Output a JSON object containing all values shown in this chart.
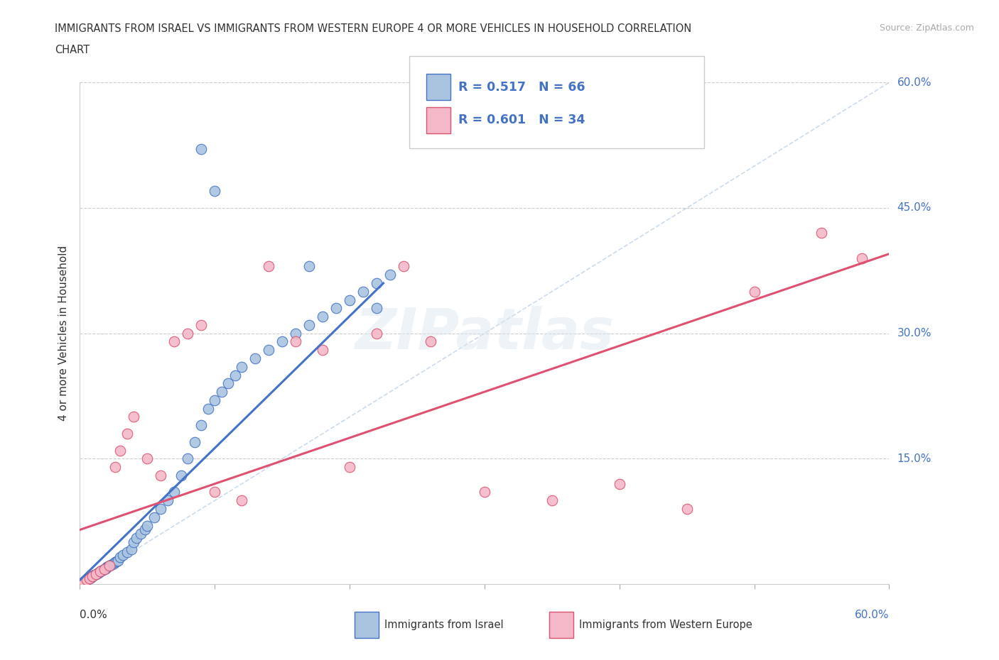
{
  "title_line1": "IMMIGRANTS FROM ISRAEL VS IMMIGRANTS FROM WESTERN EUROPE 4 OR MORE VEHICLES IN HOUSEHOLD CORRELATION",
  "title_line2": "CHART",
  "source": "Source: ZipAtlas.com",
  "ylabel": "4 or more Vehicles in Household",
  "xlim": [
    0.0,
    0.6
  ],
  "ylim": [
    0.0,
    0.6
  ],
  "ytick_values": [
    0.0,
    0.15,
    0.3,
    0.45,
    0.6
  ],
  "ytick_labels": [
    "0.0%",
    "15.0%",
    "30.0%",
    "45.0%",
    "60.0%"
  ],
  "xtick_values": [
    0.0,
    0.1,
    0.2,
    0.3,
    0.4,
    0.5,
    0.6
  ],
  "israel_fill": "#aac4e0",
  "israel_edge": "#4472c4",
  "we_fill": "#f4b8c8",
  "we_edge": "#d9546e",
  "trend_israel_color": "#4472c4",
  "trend_we_color": "#e05070",
  "diag_color": "#aac4e0",
  "legend_israel_R": "0.517",
  "legend_israel_N": "66",
  "legend_we_R": "0.601",
  "legend_we_N": "34",
  "watermark": "ZIPatlas",
  "bg_color": "#ffffff",
  "grid_color": "#cccccc",
  "value_color": "#4472c4",
  "text_color": "#333333",
  "source_color": "#aaaaaa",
  "israel_x": [
    0.001,
    0.002,
    0.003,
    0.004,
    0.005,
    0.006,
    0.007,
    0.008,
    0.009,
    0.01,
    0.011,
    0.012,
    0.013,
    0.014,
    0.015,
    0.016,
    0.017,
    0.018,
    0.019,
    0.02,
    0.021,
    0.022,
    0.023,
    0.024,
    0.025,
    0.026,
    0.027,
    0.028,
    0.03,
    0.032,
    0.035,
    0.038,
    0.04,
    0.042,
    0.045,
    0.048,
    0.05,
    0.055,
    0.06,
    0.065,
    0.07,
    0.075,
    0.08,
    0.085,
    0.09,
    0.095,
    0.1,
    0.105,
    0.11,
    0.115,
    0.12,
    0.13,
    0.14,
    0.15,
    0.16,
    0.17,
    0.18,
    0.19,
    0.2,
    0.21,
    0.22,
    0.23,
    0.22,
    0.17,
    0.09,
    0.1
  ],
  "israel_y": [
    0.001,
    0.002,
    0.003,
    0.004,
    0.005,
    0.006,
    0.007,
    0.008,
    0.009,
    0.01,
    0.011,
    0.012,
    0.013,
    0.014,
    0.015,
    0.016,
    0.017,
    0.018,
    0.019,
    0.02,
    0.021,
    0.022,
    0.023,
    0.024,
    0.025,
    0.026,
    0.027,
    0.028,
    0.032,
    0.035,
    0.038,
    0.042,
    0.05,
    0.055,
    0.06,
    0.065,
    0.07,
    0.08,
    0.09,
    0.1,
    0.11,
    0.13,
    0.15,
    0.17,
    0.19,
    0.21,
    0.22,
    0.23,
    0.24,
    0.25,
    0.26,
    0.27,
    0.28,
    0.29,
    0.3,
    0.31,
    0.32,
    0.33,
    0.34,
    0.35,
    0.36,
    0.37,
    0.33,
    0.38,
    0.52,
    0.47
  ],
  "we_x": [
    0.001,
    0.003,
    0.005,
    0.007,
    0.009,
    0.012,
    0.015,
    0.018,
    0.022,
    0.026,
    0.03,
    0.035,
    0.04,
    0.05,
    0.06,
    0.07,
    0.08,
    0.09,
    0.1,
    0.12,
    0.14,
    0.16,
    0.18,
    0.2,
    0.22,
    0.24,
    0.26,
    0.3,
    0.35,
    0.4,
    0.45,
    0.5,
    0.55,
    0.58
  ],
  "we_y": [
    0.001,
    0.003,
    0.005,
    0.007,
    0.009,
    0.012,
    0.015,
    0.018,
    0.022,
    0.14,
    0.16,
    0.18,
    0.2,
    0.15,
    0.13,
    0.29,
    0.3,
    0.31,
    0.11,
    0.1,
    0.38,
    0.29,
    0.28,
    0.14,
    0.3,
    0.38,
    0.29,
    0.11,
    0.1,
    0.12,
    0.09,
    0.35,
    0.42,
    0.39
  ],
  "israel_trend_x": [
    0.0,
    0.225
  ],
  "israel_trend_y": [
    0.005,
    0.36
  ],
  "we_trend_x": [
    0.0,
    0.6
  ],
  "we_trend_y": [
    0.065,
    0.395
  ]
}
